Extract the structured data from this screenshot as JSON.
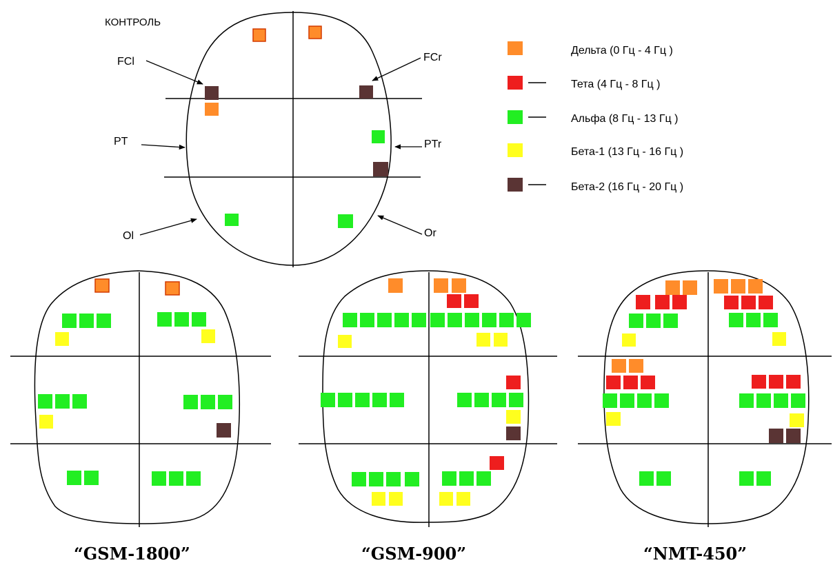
{
  "bands": [
    {
      "key": "delta",
      "label": "Дельта (0 Гц - 4 Гц )",
      "color": "#ff8c2a"
    },
    {
      "key": "theta",
      "label": "Тета (4 Гц - 8 Гц )",
      "color": "#ee1e1e"
    },
    {
      "key": "alpha",
      "label": "Альфа (8 Гц - 13 Гц )",
      "color": "#22ee22"
    },
    {
      "key": "beta1",
      "label": "Бета-1 (13 Гц - 16 Гц )",
      "color": "#ffff1e"
    },
    {
      "key": "beta2",
      "label": "Бета-2 (16 Гц - 20 Гц )",
      "color": "#5a3434"
    }
  ],
  "control": {
    "title": "КОНТРОЛЬ",
    "leads": [
      "FCl",
      "FCr",
      "PT",
      "PTr",
      "Ol",
      "Or"
    ]
  },
  "exposures": [
    {
      "caption": "“GSM-1800”"
    },
    {
      "caption": "“GSM-900”"
    },
    {
      "caption": "“NMT-450”"
    }
  ]
}
